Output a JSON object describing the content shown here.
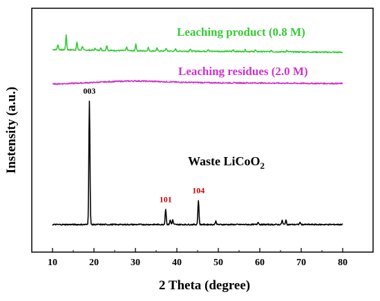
{
  "chart_data": {
    "type": "line",
    "xlabel": "2 Theta (degree)",
    "ylabel": "Instensity (a.u.)",
    "xlim": [
      8,
      82
    ],
    "x_ticks": [
      10,
      20,
      30,
      40,
      50,
      60,
      70,
      80
    ],
    "series": [
      {
        "name": "Leaching product (0.8 M)",
        "label": "Leaching product (0.8 M)",
        "color": "#33cc33",
        "baseline": [
          [
            10,
            0.8
          ],
          [
            20,
            0.62
          ],
          [
            30,
            0.45
          ],
          [
            40,
            0.35
          ],
          [
            50,
            0.3
          ],
          [
            60,
            0.22
          ],
          [
            70,
            0.12
          ],
          [
            80,
            0.0
          ]
        ],
        "peaks": [
          [
            11.3,
            1.5
          ],
          [
            13.3,
            4.2
          ],
          [
            15.9,
            2.2
          ],
          [
            17.2,
            1.1
          ],
          [
            20.3,
            0.6
          ],
          [
            21.6,
            0.7
          ],
          [
            23.1,
            1.5
          ],
          [
            27.9,
            1.0
          ],
          [
            30.1,
            2.0
          ],
          [
            33.1,
            1.0
          ],
          [
            35.2,
            0.8
          ],
          [
            37.4,
            0.8
          ],
          [
            39.7,
            0.6
          ],
          [
            43.2,
            0.6
          ],
          [
            47.5,
            0.5
          ],
          [
            53.6,
            0.5
          ],
          [
            56.5,
            0.5
          ],
          [
            58.9,
            0.4
          ],
          [
            62.8,
            0.4
          ],
          [
            66.5,
            0.4
          ]
        ]
      },
      {
        "name": "Leaching residues (2.0 M)",
        "label": "Leaching residues (2.0 M)",
        "color": "#cc33cc",
        "baseline": [
          [
            10,
            0.0
          ],
          [
            15,
            0.2
          ],
          [
            20,
            0.45
          ],
          [
            25,
            0.75
          ],
          [
            30,
            0.9
          ],
          [
            35,
            0.75
          ],
          [
            40,
            0.55
          ],
          [
            50,
            0.35
          ],
          [
            60,
            0.3
          ],
          [
            70,
            0.2
          ],
          [
            80,
            0.15
          ]
        ],
        "peaks": []
      },
      {
        "name": "Waste LiCoO2",
        "label": "Waste LiCoO",
        "label_sub": "2",
        "color": "#000000",
        "baseline": [
          [
            10,
            0.0
          ],
          [
            80,
            0.0
          ]
        ],
        "peaks": [
          [
            18.9,
            36.0
          ],
          [
            37.3,
            4.5
          ],
          [
            38.4,
            1.3
          ],
          [
            39.0,
            1.3
          ],
          [
            45.2,
            7.1
          ],
          [
            49.4,
            1.0
          ],
          [
            59.6,
            0.8
          ],
          [
            65.4,
            1.2
          ],
          [
            66.3,
            1.3
          ],
          [
            69.7,
            0.6
          ]
        ]
      }
    ],
    "annotations": [
      {
        "text": "003",
        "x": 18.9,
        "color": "#000000"
      },
      {
        "text": "101",
        "x": 37.3,
        "color": "#cc0000"
      },
      {
        "text": "104",
        "x": 45.2,
        "color": "#cc0000"
      }
    ],
    "grid": false,
    "legend": "inline labels"
  }
}
